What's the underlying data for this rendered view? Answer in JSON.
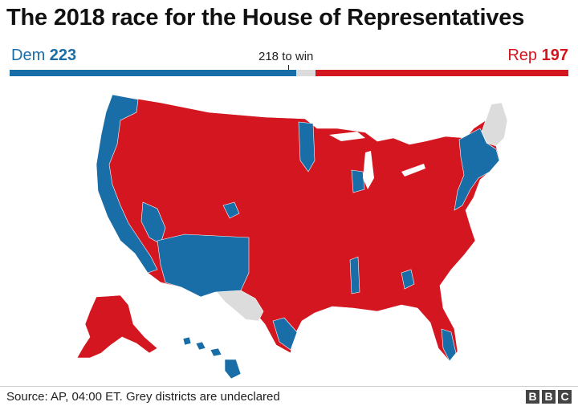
{
  "title": "The 2018 race for the House of Representatives",
  "dem": {
    "label": "Dem",
    "seats": "223",
    "color": "#1a6ea8"
  },
  "rep": {
    "label": "Rep",
    "seats": "197",
    "color": "#d3161f"
  },
  "to_win": "218 to win",
  "undeclared_color": "#dcdcdc",
  "tally": {
    "total_seats": 435,
    "dem": 223,
    "rep": 197,
    "undeclared": 15,
    "to_win": 218
  },
  "source": "Source: AP, 04:00 ET. Grey districts are undeclared",
  "logo": [
    "B",
    "B",
    "C"
  ],
  "map": {
    "description_regions": [
      "contiguous-us",
      "alaska",
      "hawaii"
    ]
  }
}
